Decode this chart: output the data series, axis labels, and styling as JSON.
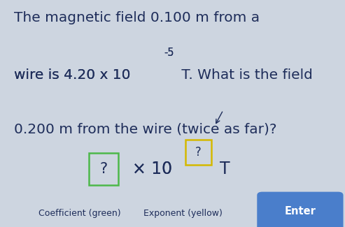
{
  "bg_color": "#cdd5e0",
  "text_color": "#1e2d5a",
  "line1": "The magnetic field 0.100 m from a",
  "line2_pre": "wire is 4.20 x 10",
  "line2_exp": "-5",
  "line2_post": " T. What is the field",
  "line3": "0.200 m from the wire (twice as far)?",
  "coeff_box_color": "#4db84a",
  "coeff_box_text": "?",
  "exp_box_color": "#d4b800",
  "exp_box_text": "?",
  "times_text": "× 10",
  "T_text": "T",
  "label_coeff": "Coefficient (green)",
  "label_exp": "Exponent (yellow)",
  "enter_text": "Enter",
  "enter_bg": "#4a7ecb",
  "enter_text_color": "#ffffff",
  "fontsize_main": 14.5,
  "fontsize_answer": 17.0,
  "fontsize_label": 9.0
}
